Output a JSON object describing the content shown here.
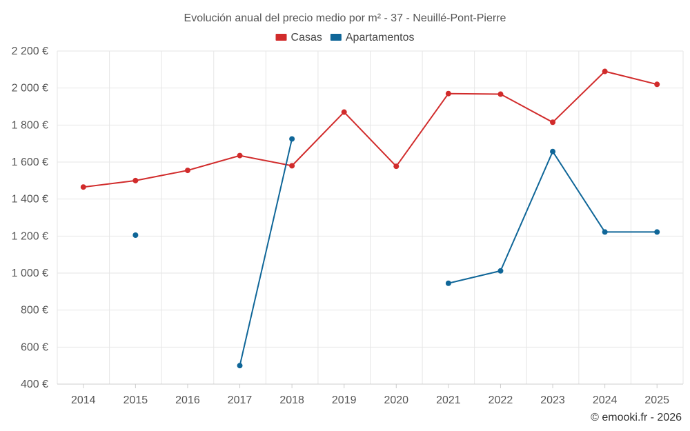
{
  "chart_data": {
    "type": "line",
    "title": "Evolución anual del precio medio por m² - 37 - Neuillé-Pont-Pierre",
    "categories": [
      "2014",
      "2015",
      "2016",
      "2017",
      "2018",
      "2019",
      "2020",
      "2021",
      "2022",
      "2023",
      "2024",
      "2025"
    ],
    "y_ticks": [
      400,
      600,
      800,
      1000,
      1200,
      1400,
      1600,
      1800,
      2000,
      2200
    ],
    "y_tick_labels": [
      "400 €",
      "600 €",
      "800 €",
      "1 000 €",
      "1 200 €",
      "1 400 €",
      "1 600 €",
      "1 800 €",
      "2 000 €",
      "2 200 €"
    ],
    "ylim": [
      400,
      2200
    ],
    "grid": true,
    "legend_position": "top-center",
    "series": [
      {
        "name": "Casas",
        "color": "#d12b2b",
        "values": [
          1465,
          1500,
          1555,
          1635,
          1580,
          1870,
          1577,
          1970,
          1967,
          1815,
          2090,
          2020
        ]
      },
      {
        "name": "Apartamentos",
        "color": "#0f6698",
        "values": [
          null,
          1205,
          null,
          500,
          1725,
          null,
          null,
          945,
          1012,
          1657,
          1222,
          1222
        ]
      }
    ],
    "credit": "© emooki.fr - 2026"
  }
}
